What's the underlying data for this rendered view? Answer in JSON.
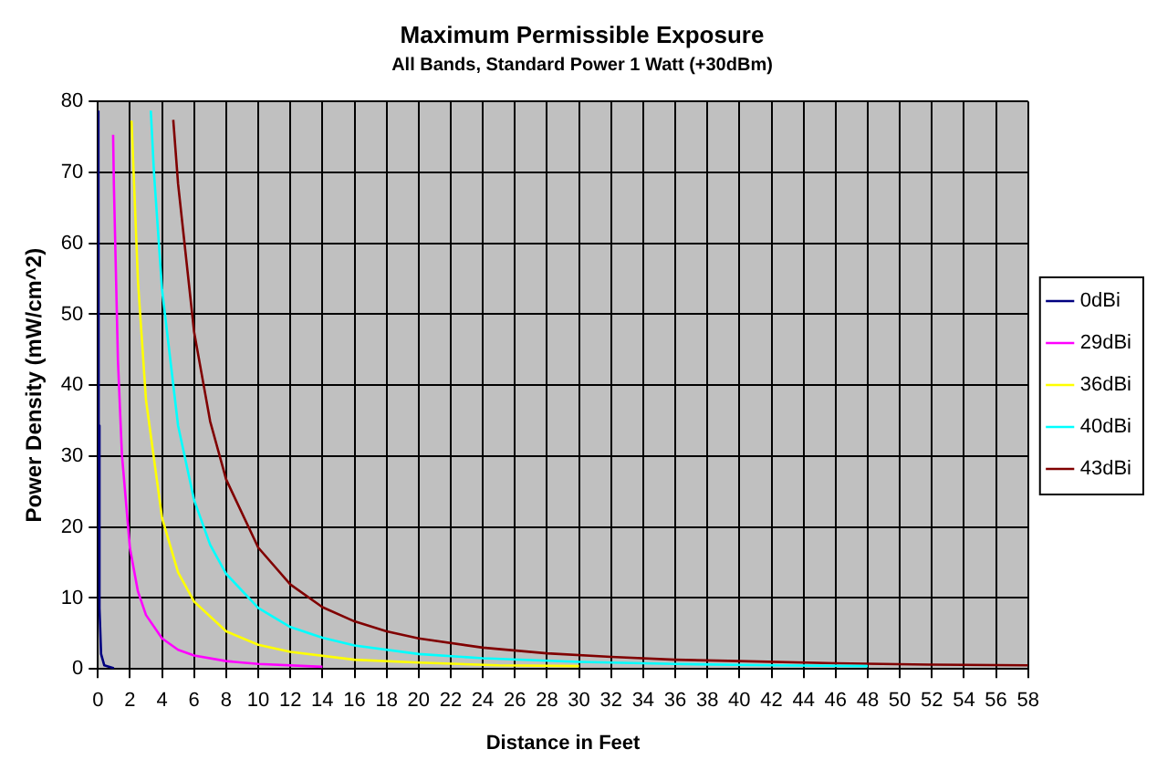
{
  "chart_data": {
    "type": "line",
    "title": "Maximum Permissible Exposure",
    "subtitle": "All Bands, Standard Power 1 Watt (+30dBm)",
    "xlabel": "Distance in Feet",
    "ylabel": "Power Density (mW/cm^2)",
    "xlim": [
      0,
      58
    ],
    "xticks": [
      0,
      2,
      4,
      6,
      8,
      10,
      12,
      14,
      16,
      18,
      20,
      22,
      24,
      26,
      28,
      30,
      32,
      34,
      36,
      38,
      40,
      42,
      44,
      46,
      48,
      50,
      52,
      54,
      56,
      58
    ],
    "ylim": [
      0,
      80
    ],
    "yticks": [
      0,
      10,
      20,
      30,
      40,
      50,
      60,
      70,
      80
    ],
    "grid": true,
    "legend": "right",
    "marker": "none",
    "line_style": "solid",
    "series": [
      {
        "name": "0dBi",
        "color": "#000080",
        "x": [
          0.033,
          0.05,
          0.1,
          0.2,
          0.4,
          1
        ],
        "values": [
          78.7,
          34.3,
          8.6,
          2.1,
          0.5,
          0.1
        ]
      },
      {
        "name": "29dBi",
        "color": "#ff00ff",
        "x": [
          0.95,
          1,
          1.25,
          1.5,
          2,
          2.5,
          3,
          4,
          5,
          6,
          8,
          10,
          14
        ],
        "values": [
          75.3,
          68,
          43.5,
          30.2,
          17,
          10.9,
          7.6,
          4.3,
          2.7,
          1.9,
          1.1,
          0.7,
          0.3
        ]
      },
      {
        "name": "36dBi",
        "color": "#ffff00",
        "x": [
          2.1,
          2.5,
          3,
          4,
          5,
          6,
          8,
          10,
          12,
          16,
          20,
          25,
          30
        ],
        "values": [
          77.3,
          54.6,
          37.9,
          21.3,
          13.6,
          9.5,
          5.3,
          3.4,
          2.4,
          1.3,
          0.9,
          0.5,
          0.4
        ]
      },
      {
        "name": "40dBi",
        "color": "#00ffff",
        "x": [
          3.3,
          3.5,
          4,
          5,
          6,
          7,
          8,
          10,
          12,
          14,
          16,
          20,
          24,
          30,
          36,
          42,
          48
        ],
        "values": [
          78.7,
          69.9,
          53.5,
          34.3,
          23.8,
          17.5,
          13.4,
          8.6,
          5.9,
          4.4,
          3.3,
          2.1,
          1.5,
          1,
          0.7,
          0.5,
          0.4
        ]
      },
      {
        "name": "43dBi",
        "color": "#800000",
        "x": [
          4.7,
          5,
          6,
          7,
          8,
          10,
          12,
          14,
          16,
          18,
          20,
          24,
          28,
          32,
          36,
          40,
          46,
          52,
          58
        ],
        "values": [
          77.4,
          68.4,
          47.5,
          34.9,
          26.7,
          17.1,
          11.9,
          8.7,
          6.7,
          5.3,
          4.3,
          3,
          2.2,
          1.7,
          1.3,
          1.1,
          0.8,
          0.6,
          0.5
        ]
      }
    ]
  }
}
